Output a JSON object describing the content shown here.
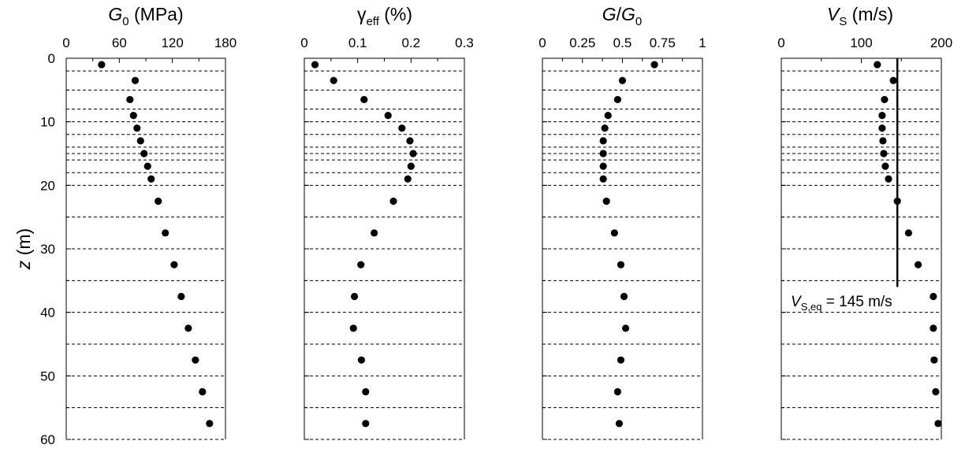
{
  "chart_data": [
    {
      "type": "scatter",
      "title": "G0 (MPa)",
      "xlim": [
        0,
        180
      ],
      "xticks": [
        0,
        60,
        120,
        180
      ],
      "ylabel": "z (m)",
      "ylim": [
        0,
        60
      ],
      "yticks": [
        0,
        10,
        20,
        30,
        40,
        50,
        60
      ],
      "series": [
        {
          "x": [
            40,
            78,
            72,
            76,
            80,
            84,
            88,
            92,
            96,
            104,
            112,
            122,
            130,
            138,
            146,
            154,
            162
          ],
          "y": [
            1,
            3.5,
            6.5,
            9,
            11,
            13,
            15,
            17,
            19,
            22.5,
            27.5,
            32.5,
            37.5,
            42.5,
            47.5,
            52.5,
            57.5
          ]
        }
      ]
    },
    {
      "type": "scatter",
      "title": "γeff (%)",
      "xlim": [
        0,
        0.3
      ],
      "xticks": [
        "0",
        "0.1",
        "0.2",
        "0.3"
      ],
      "ylim": [
        0,
        60
      ],
      "series": [
        {
          "x": [
            0.02,
            0.055,
            0.112,
            0.157,
            0.183,
            0.198,
            0.204,
            0.2,
            0.194,
            0.167,
            0.131,
            0.106,
            0.094,
            0.092,
            0.107,
            0.115,
            0.115
          ],
          "y": [
            1,
            3.5,
            6.5,
            9,
            11,
            13,
            15,
            17,
            19,
            22.5,
            27.5,
            32.5,
            37.5,
            42.5,
            47.5,
            52.5,
            57.5
          ]
        }
      ]
    },
    {
      "type": "scatter",
      "title": "G/G0",
      "xlim": [
        0,
        1
      ],
      "xticks": [
        "0",
        "0.25",
        "0.5",
        "0.75",
        "1"
      ],
      "ylim": [
        0,
        60
      ],
      "series": [
        {
          "x": [
            0.7,
            0.5,
            0.47,
            0.41,
            0.39,
            0.38,
            0.38,
            0.38,
            0.38,
            0.4,
            0.45,
            0.49,
            0.51,
            0.52,
            0.49,
            0.47,
            0.48
          ],
          "y": [
            1,
            3.5,
            6.5,
            9,
            11,
            13,
            15,
            17,
            19,
            22.5,
            27.5,
            32.5,
            37.5,
            42.5,
            47.5,
            52.5,
            57.5
          ]
        }
      ]
    },
    {
      "type": "scatter",
      "title": "VS (m/s)",
      "xlim": [
        0,
        200
      ],
      "xticks": [
        0,
        100,
        200
      ],
      "ylim": [
        0,
        60
      ],
      "series": [
        {
          "x": [
            120,
            140,
            129,
            126,
            126,
            127,
            128,
            130,
            134,
            145,
            159,
            171,
            190,
            190,
            191,
            193,
            196
          ],
          "y": [
            1,
            3.5,
            6.5,
            9,
            11,
            13,
            15,
            17,
            19,
            22.5,
            27.5,
            32.5,
            37.5,
            42.5,
            47.5,
            52.5,
            57.5
          ]
        }
      ],
      "reference_line": {
        "x": 145,
        "y_from": 0,
        "y_to": 36
      },
      "annotation": "VS,eq = 145 m/s"
    }
  ],
  "layer_boundaries_m": [
    2,
    5,
    8,
    10,
    12,
    14,
    15,
    16,
    18,
    20,
    25,
    30,
    35,
    40,
    45,
    50,
    55,
    60
  ],
  "titles": {
    "p0_main": "G",
    "p0_sub": "0",
    "p0_tail": " (MPa)",
    "p1_main": "γ",
    "p1_sub": "eff",
    "p1_tail": " (%)",
    "p2_main": "G",
    "p2_slash": "/",
    "p2_main2": "G",
    "p2_sub": "0",
    "p3_main": "V",
    "p3_sub": "S",
    "p3_tail": " (m/s)"
  },
  "ylabel": {
    "var": "z",
    "unit": " (m)"
  },
  "annotation": {
    "main": "V",
    "sub": "S,eq",
    "tail": " = 145 m/s"
  }
}
